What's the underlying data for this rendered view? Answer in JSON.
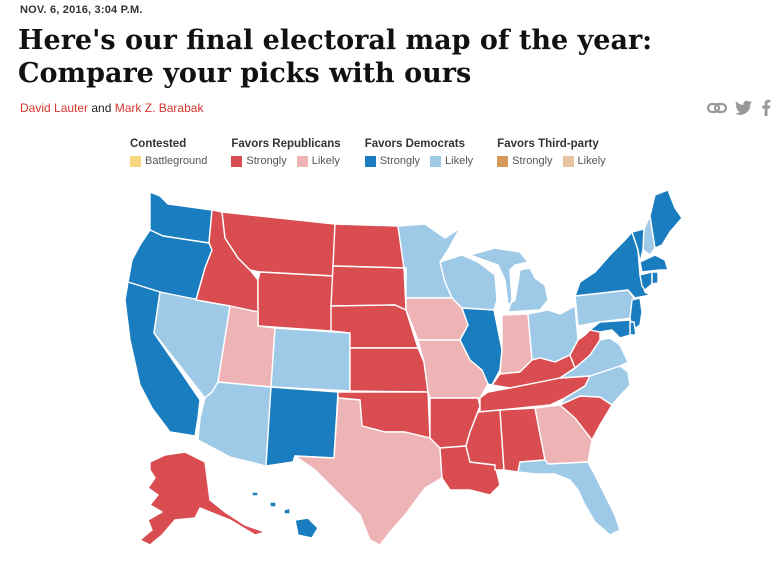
{
  "dateline": "NOV. 6, 2016, 3:04 P.M.",
  "headline": "Here's our final electoral map of the year: Compare your picks with ours",
  "byline": {
    "author1": "David Lauter",
    "connector": " and ",
    "author2": "Mark Z. Barabak"
  },
  "share_icons": [
    "link-icon",
    "twitter-icon",
    "facebook-icon"
  ],
  "colors": {
    "battleground": "#f6d77f",
    "rep_strong": "#d94c50",
    "rep_likely": "#eeb3b5",
    "dem_strong": "#1a7dc0",
    "dem_likely": "#9fcae7",
    "third_strong": "#d29a5d",
    "third_likely": "#e9c4a0",
    "author": "#d4382e"
  },
  "legend": [
    {
      "title": "Contested",
      "items": [
        {
          "label": "Battleground",
          "color_key": "battleground"
        }
      ]
    },
    {
      "title": "Favors Republicans",
      "items": [
        {
          "label": "Strongly",
          "color_key": "rep_strong"
        },
        {
          "label": "Likely",
          "color_key": "rep_likely"
        }
      ]
    },
    {
      "title": "Favors Democrats",
      "items": [
        {
          "label": "Strongly",
          "color_key": "dem_strong"
        },
        {
          "label": "Likely",
          "color_key": "dem_likely"
        }
      ]
    },
    {
      "title": "Favors Third-party",
      "items": [
        {
          "label": "Strongly",
          "color_key": "third_strong"
        },
        {
          "label": "Likely",
          "color_key": "third_likely"
        }
      ]
    }
  ],
  "states": {
    "WA": "dem_strong",
    "OR": "dem_strong",
    "CA": "dem_strong",
    "NV": "dem_likely",
    "ID": "rep_strong",
    "MT": "rep_strong",
    "WY": "rep_strong",
    "UT": "rep_likely",
    "AZ": "dem_likely",
    "CO": "dem_likely",
    "NM": "dem_strong",
    "ND": "rep_strong",
    "SD": "rep_strong",
    "NE": "rep_strong",
    "KS": "rep_strong",
    "OK": "rep_strong",
    "TX": "rep_likely",
    "MN": "dem_likely",
    "IA": "rep_likely",
    "MO": "rep_likely",
    "AR": "rep_strong",
    "LA": "rep_strong",
    "WI": "dem_likely",
    "IL": "dem_strong",
    "MI": "dem_likely",
    "IN": "rep_likely",
    "OH": "dem_likely",
    "KY": "rep_strong",
    "TN": "rep_strong",
    "MS": "rep_strong",
    "AL": "rep_strong",
    "GA": "rep_likely",
    "FL": "dem_likely",
    "SC": "rep_strong",
    "NC": "dem_likely",
    "VA": "dem_likely",
    "WV": "rep_strong",
    "PA": "dem_likely",
    "NY": "dem_strong",
    "VT": "dem_strong",
    "NH": "dem_likely",
    "ME": "dem_strong",
    "MA": "dem_strong",
    "CT": "dem_strong",
    "RI": "dem_strong",
    "NJ": "dem_strong",
    "DE": "dem_strong",
    "MD": "dem_strong",
    "AK": "rep_strong",
    "HI": "dem_strong"
  }
}
